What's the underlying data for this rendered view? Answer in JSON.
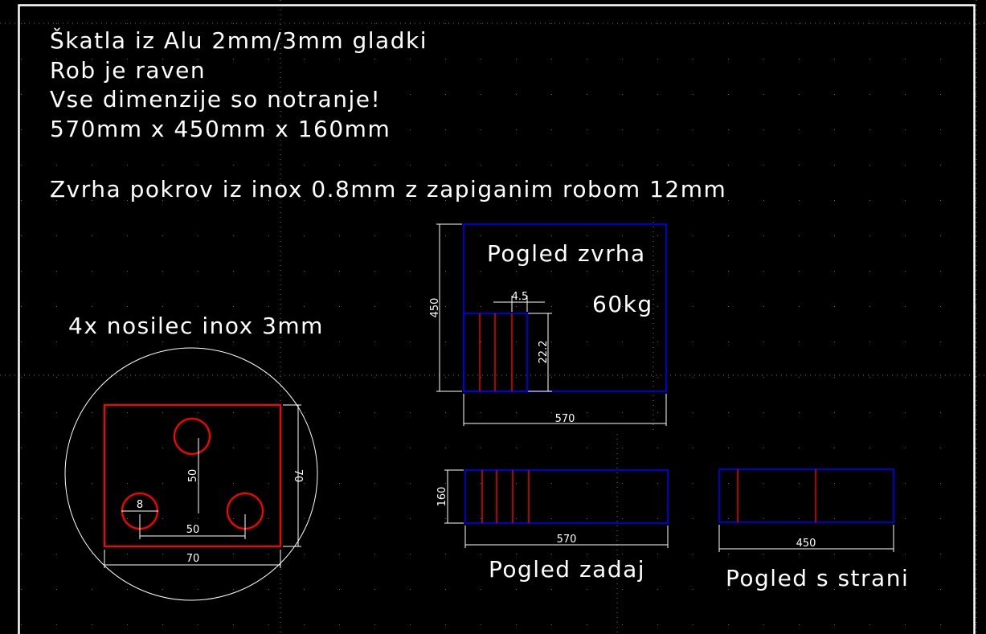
{
  "notes": [
    "Škatla iz Alu 2mm/3mm gladki",
    "Rob je raven",
    "Vse dimenzije so notranje!",
    "570mm x 450mm x 160mm",
    "Zvrha pokrov iz inox 0.8mm z zapiganim robom 12mm"
  ],
  "colors": {
    "background": "#000000",
    "outline": "#0000ff",
    "detail": "#ff0000",
    "dimension": "#ffffff"
  },
  "top_view": {
    "title": "Pogled zvrha",
    "weight": "60kg",
    "dim_height": "450",
    "dim_width": "570",
    "dim_inner_height": "22.2",
    "dim_gap": "4.5"
  },
  "back_view": {
    "title": "Pogled zadaj",
    "dim_height": "160",
    "dim_width": "570"
  },
  "side_view": {
    "title": "Pogled s strani",
    "dim_width": "450"
  },
  "bracket": {
    "title": "4x nosilec inox 3mm",
    "dim_hole": "8",
    "dim_vertical_spacing": "50",
    "dim_horizontal_spacing": "50",
    "dim_width": "70",
    "dim_height": "70"
  }
}
